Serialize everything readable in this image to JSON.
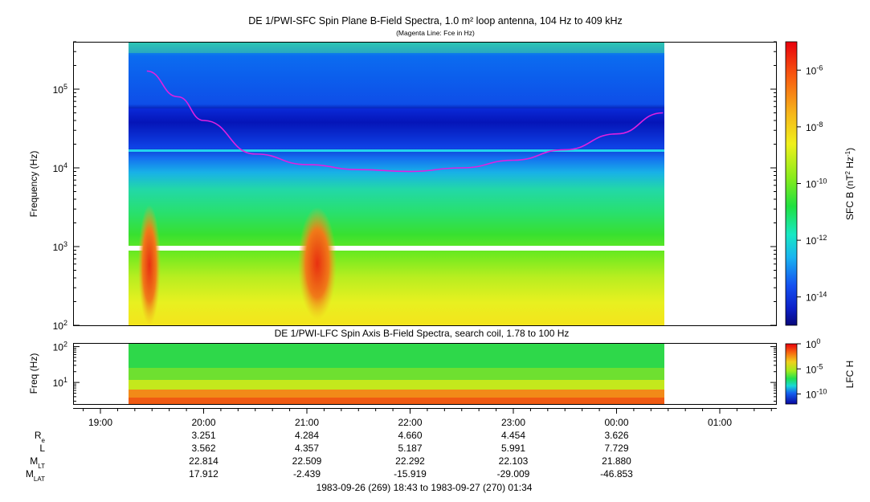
{
  "chart_data": [
    {
      "type": "heatmap",
      "title": "DE 1/PWI-SFC  Spin Plane B-Field Spectra, 1.0 m² loop antenna, 104 Hz to 409 kHz",
      "subtitle": "(Magenta Line: Fce in Hz)",
      "ylabel": "Frequency (Hz)",
      "yscale": "log",
      "ylim": [
        100,
        400000
      ],
      "ytick_values": [
        100,
        1000,
        10000,
        100000
      ],
      "ytick_labels": [
        "10^2",
        "10^3",
        "10^4",
        "10^5"
      ],
      "data_time_range": [
        "19:23",
        "00:27"
      ],
      "data_gap_hz": [
        920,
        1050
      ],
      "colorbar": {
        "label_base": "SFC B (nT",
        "label_sup1": "2",
        "label_mid": " Hz",
        "label_sup2": "-1",
        "label_end": ")",
        "scale": "log",
        "range": [
          1e-15,
          1e-05
        ],
        "ticks": [
          "10^-6",
          "10^-8",
          "10^-10",
          "10^-12",
          "10^-14"
        ],
        "tick_exps": [
          -6,
          -8,
          -10,
          -12,
          -14
        ]
      },
      "overlay": {
        "name": "Fce",
        "color": "#e020e0",
        "points": [
          {
            "t": "19:27",
            "hz": 170000
          },
          {
            "t": "19:45",
            "hz": 80000
          },
          {
            "t": "20:00",
            "hz": 40000
          },
          {
            "t": "20:30",
            "hz": 15000
          },
          {
            "t": "21:00",
            "hz": 11000
          },
          {
            "t": "21:30",
            "hz": 9500
          },
          {
            "t": "22:00",
            "hz": 9000
          },
          {
            "t": "22:30",
            "hz": 10000
          },
          {
            "t": "23:00",
            "hz": 12500
          },
          {
            "t": "23:30",
            "hz": 17000
          },
          {
            "t": "00:00",
            "hz": 27000
          },
          {
            "t": "00:27",
            "hz": 50000
          }
        ]
      }
    },
    {
      "type": "heatmap",
      "title": "DE 1/PWI-LFC  Spin Axis B-Field Spectra, search coil, 1.78 to 100 Hz",
      "ylabel": "Freq (Hz)",
      "yscale": "log",
      "ylim": [
        2.5,
        120
      ],
      "ytick_values": [
        10,
        100
      ],
      "ytick_labels": [
        "10^1",
        "10^2"
      ],
      "colorbar": {
        "label": "LFC H",
        "scale": "log",
        "range": [
          1e-12,
          1
        ],
        "ticks": [
          "10^0",
          "10^-5",
          "10^-10"
        ],
        "tick_exps": [
          0,
          -5,
          -10
        ]
      }
    }
  ],
  "time_axis": {
    "tick_labels": [
      "19:00",
      "20:00",
      "21:00",
      "22:00",
      "23:00",
      "00:00",
      "01:00"
    ],
    "range_label": "1983-09-26 (269) 18:43 to 1983-09-27 (270) 01:34"
  },
  "ephemeris": {
    "rows": [
      {
        "label": "R",
        "sub": "e",
        "values": [
          "3.251",
          "4.284",
          "4.660",
          "4.454",
          "3.626"
        ]
      },
      {
        "label": "L",
        "sub": "",
        "values": [
          "3.562",
          "4.357",
          "5.187",
          "5.991",
          "7.729"
        ]
      },
      {
        "label": "M",
        "sub": "LT",
        "values": [
          "22.814",
          "22.509",
          "22.292",
          "22.103",
          "21.880"
        ]
      },
      {
        "label": "M",
        "sub": "LAT",
        "values": [
          "17.912",
          "-2.439",
          "-15.919",
          "-29.009",
          "-46.853"
        ]
      }
    ]
  }
}
